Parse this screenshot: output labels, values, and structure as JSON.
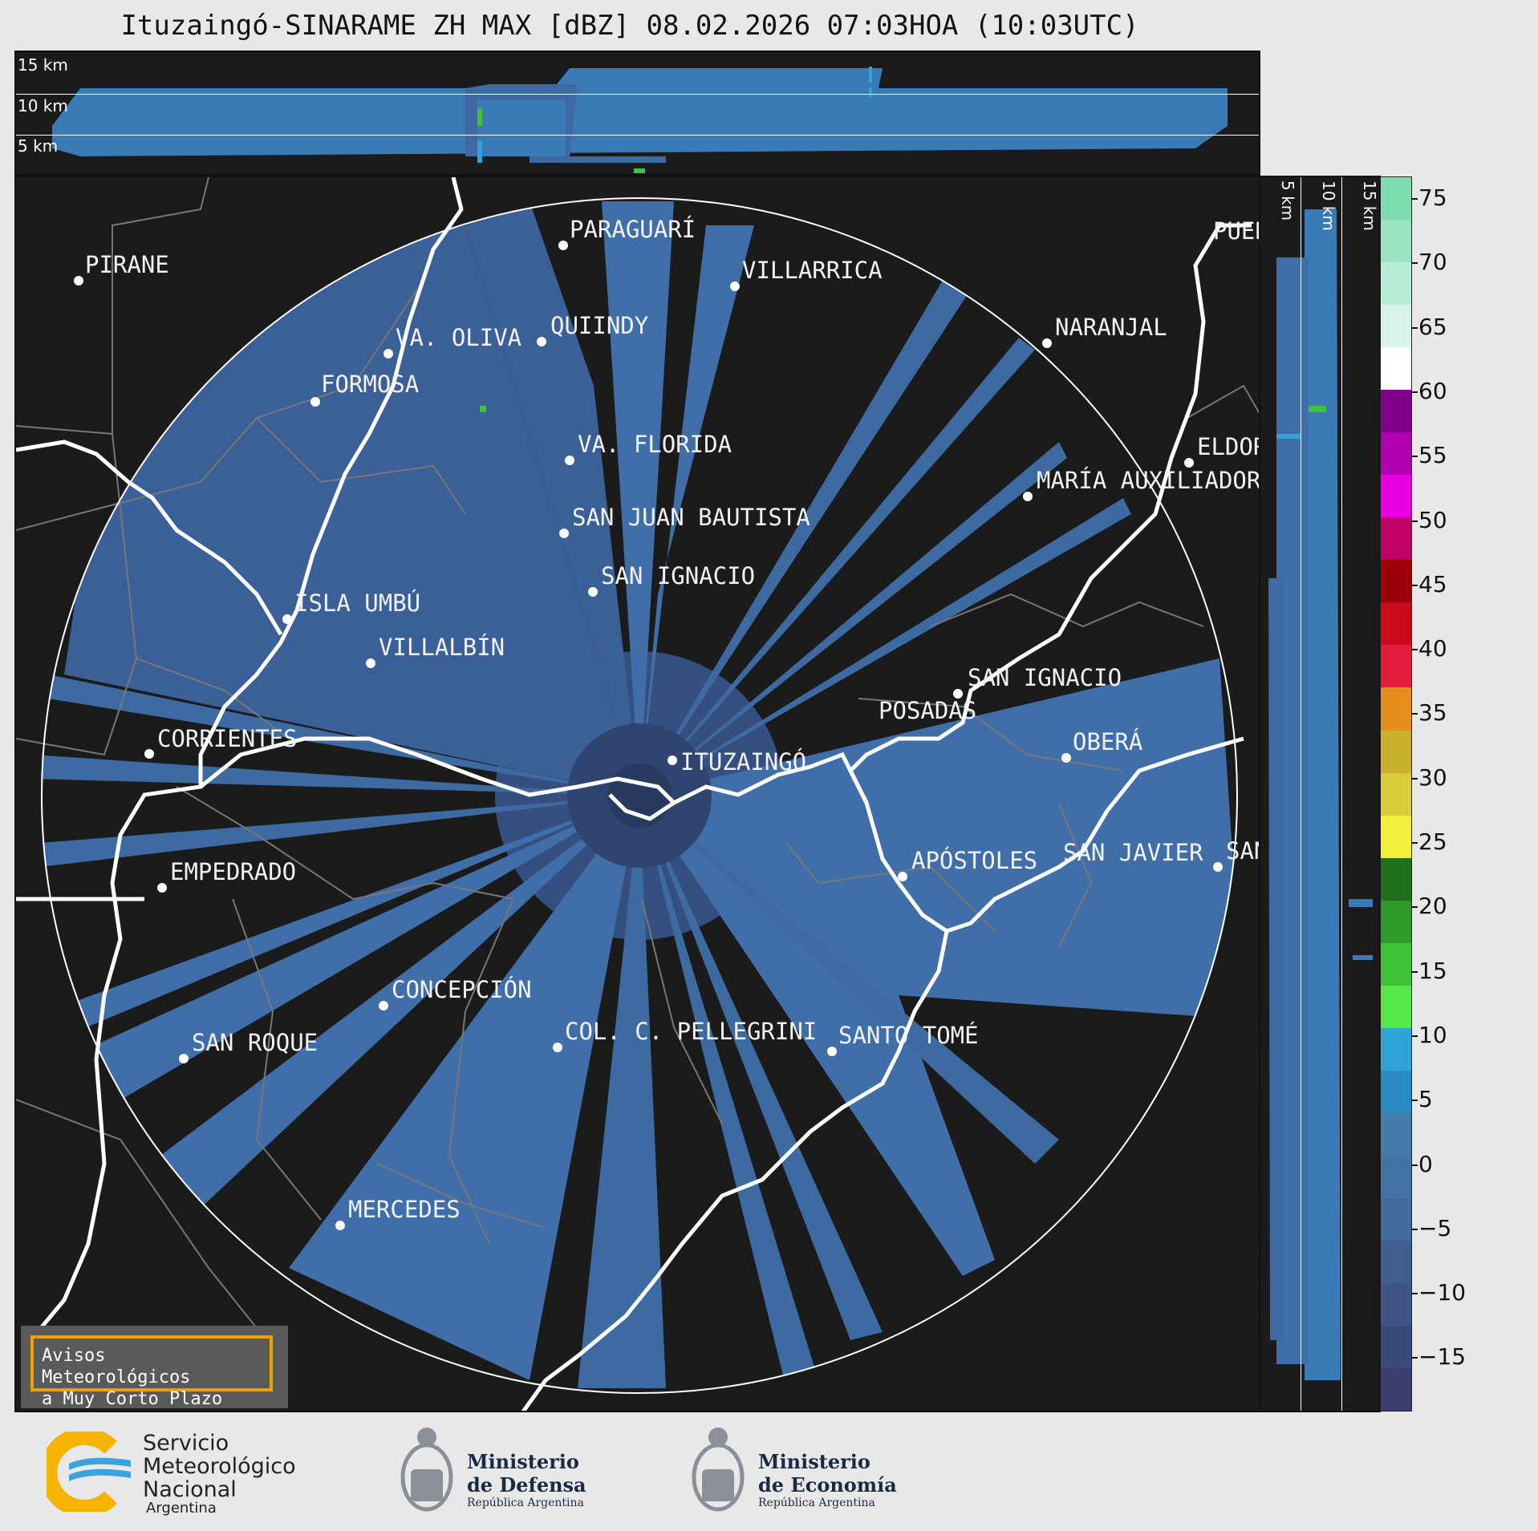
{
  "title": "Ituzaingó-SINARAME ZH MAX [dBZ] 08.02.2026 07:03HOA (10:03UTC)",
  "top_panel": {
    "height_labels": [
      "15 km",
      "10 km",
      "5 km"
    ]
  },
  "side_panel": {
    "height_labels": [
      "5 km",
      "10 km",
      "15 km"
    ]
  },
  "colorbar": {
    "ticks": [
      "75",
      "70",
      "65",
      "60",
      "55",
      "50",
      "45",
      "40",
      "35",
      "30",
      "25",
      "20",
      "15",
      "10",
      "5",
      "0",
      "−5",
      "−10",
      "−15"
    ],
    "colors": [
      "#3a3f6e",
      "#3c4a7a",
      "#3e5586",
      "#3f5f91",
      "#41699c",
      "#4373a6",
      "#457cae",
      "#2a8bc4",
      "#2fa3d6",
      "#57e84a",
      "#3fc236",
      "#2e9a2a",
      "#1f6f1d",
      "#f2ee3a",
      "#d9cc3a",
      "#c9b02e",
      "#e48e1d",
      "#e21c3c",
      "#c90a1a",
      "#9c0008",
      "#c00064",
      "#e800e0",
      "#b000b0",
      "#80008c",
      "#ffffff",
      "#d8f4e8",
      "#b9ecd4",
      "#9ce4c0",
      "#7fdcb0"
    ]
  },
  "cities": [
    {
      "name": "PIRANE"
    },
    {
      "name": "PARAGUARÍ"
    },
    {
      "name": "VILLARRICA"
    },
    {
      "name": "QUIINDY"
    },
    {
      "name": "VA. OLIVA"
    },
    {
      "name": "NARANJAL"
    },
    {
      "name": "FORMOSA"
    },
    {
      "name": "PUERTO"
    },
    {
      "name": "VA. FLORIDA"
    },
    {
      "name": "ELDORADO"
    },
    {
      "name": "MARÍA AUXILIADORA"
    },
    {
      "name": "SAN JUAN BAUTISTA"
    },
    {
      "name": "SAN IGNACIO"
    },
    {
      "name": "ISLA UMBÚ"
    },
    {
      "name": "VILLALBÍN"
    },
    {
      "name": "SAN IGNACIO"
    },
    {
      "name": "POSADAS"
    },
    {
      "name": "CORRIENTES"
    },
    {
      "name": "OBERÁ"
    },
    {
      "name": "ITUZAINGÓ"
    },
    {
      "name": "EMPEDRADO"
    },
    {
      "name": "APÓSTOLES"
    },
    {
      "name": "SAN JAVIER"
    },
    {
      "name": "SAN"
    },
    {
      "name": "CONCEPCIÓN"
    },
    {
      "name": "COL. C. PELLEGRINI"
    },
    {
      "name": "SANTO TOMÉ"
    },
    {
      "name": "SAN ROQUE"
    },
    {
      "name": "MERCEDES"
    }
  ],
  "warning": {
    "line1": "Avisos Meteorológicos",
    "line2": "a Muy Corto Plazo"
  },
  "logos": {
    "smn": {
      "line1": "Servicio",
      "line2": "Meteorológico",
      "line3": "Nacional",
      "line4": "Argentina"
    },
    "defensa": {
      "line1": "Ministerio",
      "line2": "de Defensa",
      "line3": "República Argentina"
    },
    "economia": {
      "line1": "Ministerio",
      "line2": "de Economía",
      "line3": "República Argentina"
    }
  }
}
